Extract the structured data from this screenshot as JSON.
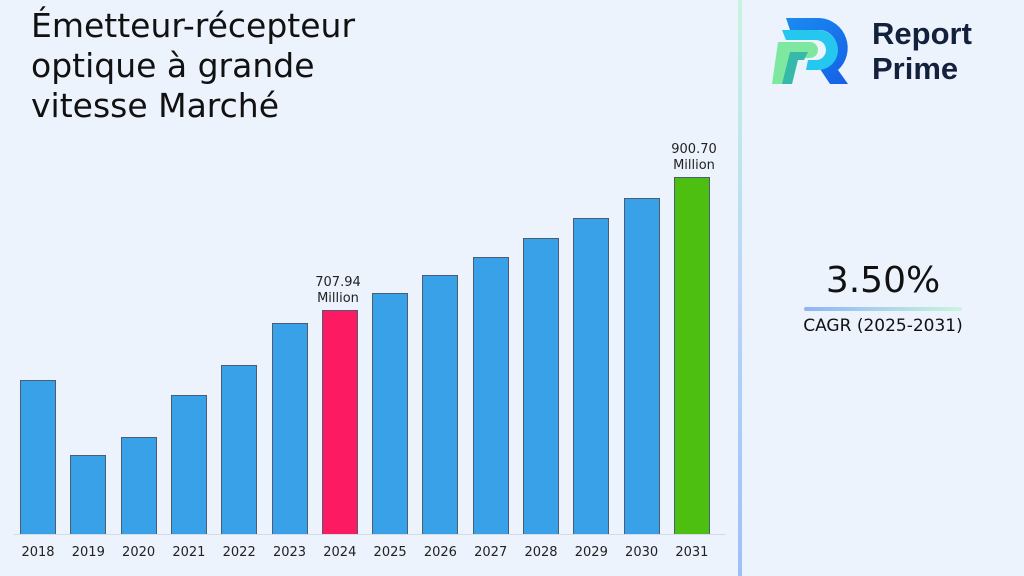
{
  "header": {
    "title": "Émetteur-récepteur optique à grande vitesse Marché"
  },
  "logo": {
    "line1": "Report",
    "line2": "Prime"
  },
  "cagr": {
    "value": "3.50%",
    "label": "CAGR (2025-2031)"
  },
  "colors": {
    "default_bar": "#38a1e8",
    "highlight_2024": "#fc1b63",
    "highlight_2031": "#4cbf10",
    "background": "#edf3fd",
    "logo_text": "#14213d"
  },
  "chart_data": {
    "type": "bar",
    "title": "Émetteur-récepteur optique à grande vitesse Marché",
    "xlabel": "",
    "ylabel": "",
    "unit": "Million",
    "categories": [
      "2018",
      "2019",
      "2020",
      "2021",
      "2022",
      "2023",
      "2024",
      "2025",
      "2026",
      "2027",
      "2028",
      "2029",
      "2030",
      "2031"
    ],
    "values": [
      606.5,
      497.8,
      523.9,
      584.7,
      628.2,
      689.1,
      707.94,
      732.72,
      758.36,
      784.91,
      812.38,
      840.81,
      870.24,
      900.7
    ],
    "annotations": [
      {
        "category": "2024",
        "text": "707.94 Million"
      },
      {
        "category": "2031",
        "text": "900.70 Million"
      }
    ],
    "highlight": {
      "2024": "#fc1b63",
      "2031": "#4cbf10"
    },
    "grid": false,
    "legend": "none",
    "cagr": "3.50%",
    "cagr_period": "2025-2031"
  },
  "labels": {
    "v2024_line1": "707.94",
    "v2024_line2": "Million",
    "v2031_line1": "900.70",
    "v2031_line2": "Million"
  }
}
